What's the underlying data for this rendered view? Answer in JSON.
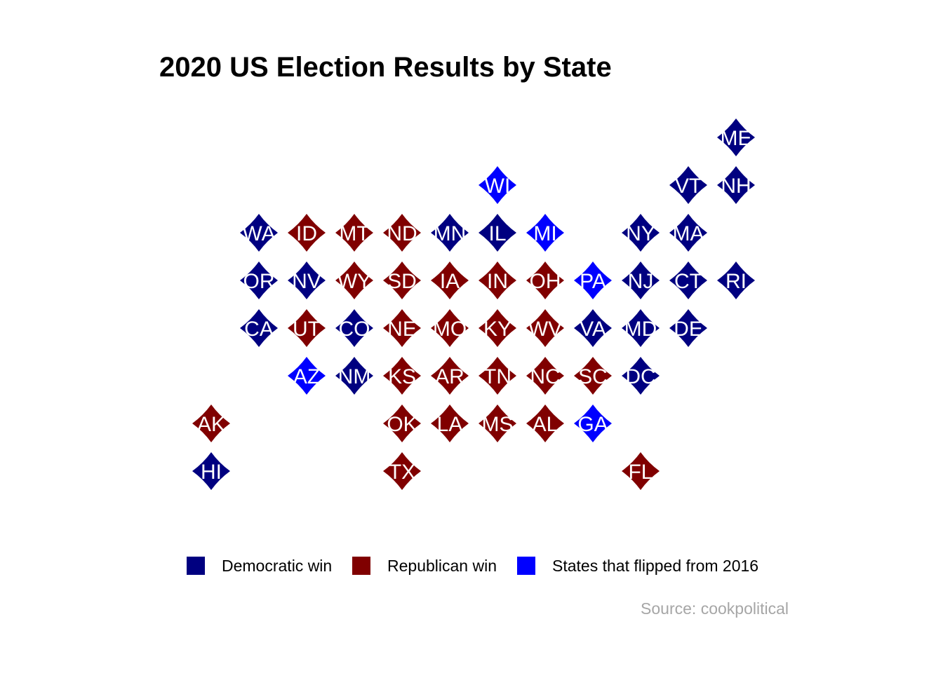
{
  "title": "2020 US Election Results by State",
  "source": "Source: cookpolitical",
  "colors": {
    "democratic": "#000080",
    "republican": "#800000",
    "flipped": "#0000FF",
    "background": "#FFFFFF",
    "label": "#FFFFFF",
    "source_text": "#A6A6A6"
  },
  "legend": {
    "democratic_label": "Democratic win",
    "republican_label": "Republican win",
    "flipped_label": "States that flipped from 2016"
  },
  "states": [
    {
      "abbr": "ME",
      "col": 11,
      "row": 0,
      "result": "democratic"
    },
    {
      "abbr": "WI",
      "col": 6,
      "row": 1,
      "result": "flipped"
    },
    {
      "abbr": "VT",
      "col": 10,
      "row": 1,
      "result": "democratic"
    },
    {
      "abbr": "NH",
      "col": 11,
      "row": 1,
      "result": "democratic"
    },
    {
      "abbr": "WA",
      "col": 1,
      "row": 2,
      "result": "democratic"
    },
    {
      "abbr": "ID",
      "col": 2,
      "row": 2,
      "result": "republican"
    },
    {
      "abbr": "MT",
      "col": 3,
      "row": 2,
      "result": "republican"
    },
    {
      "abbr": "ND",
      "col": 4,
      "row": 2,
      "result": "republican"
    },
    {
      "abbr": "MN",
      "col": 5,
      "row": 2,
      "result": "democratic"
    },
    {
      "abbr": "IL",
      "col": 6,
      "row": 2,
      "result": "democratic"
    },
    {
      "abbr": "MI",
      "col": 7,
      "row": 2,
      "result": "flipped"
    },
    {
      "abbr": "NY",
      "col": 9,
      "row": 2,
      "result": "democratic"
    },
    {
      "abbr": "MA",
      "col": 10,
      "row": 2,
      "result": "democratic"
    },
    {
      "abbr": "OR",
      "col": 1,
      "row": 3,
      "result": "democratic"
    },
    {
      "abbr": "NV",
      "col": 2,
      "row": 3,
      "result": "democratic"
    },
    {
      "abbr": "WY",
      "col": 3,
      "row": 3,
      "result": "republican"
    },
    {
      "abbr": "SD",
      "col": 4,
      "row": 3,
      "result": "republican"
    },
    {
      "abbr": "IA",
      "col": 5,
      "row": 3,
      "result": "republican"
    },
    {
      "abbr": "IN",
      "col": 6,
      "row": 3,
      "result": "republican"
    },
    {
      "abbr": "OH",
      "col": 7,
      "row": 3,
      "result": "republican"
    },
    {
      "abbr": "PA",
      "col": 8,
      "row": 3,
      "result": "flipped"
    },
    {
      "abbr": "NJ",
      "col": 9,
      "row": 3,
      "result": "democratic"
    },
    {
      "abbr": "CT",
      "col": 10,
      "row": 3,
      "result": "democratic"
    },
    {
      "abbr": "RI",
      "col": 11,
      "row": 3,
      "result": "democratic"
    },
    {
      "abbr": "CA",
      "col": 1,
      "row": 4,
      "result": "democratic"
    },
    {
      "abbr": "UT",
      "col": 2,
      "row": 4,
      "result": "republican"
    },
    {
      "abbr": "CO",
      "col": 3,
      "row": 4,
      "result": "democratic"
    },
    {
      "abbr": "NE",
      "col": 4,
      "row": 4,
      "result": "republican"
    },
    {
      "abbr": "MO",
      "col": 5,
      "row": 4,
      "result": "republican"
    },
    {
      "abbr": "KY",
      "col": 6,
      "row": 4,
      "result": "republican"
    },
    {
      "abbr": "WV",
      "col": 7,
      "row": 4,
      "result": "republican"
    },
    {
      "abbr": "VA",
      "col": 8,
      "row": 4,
      "result": "democratic"
    },
    {
      "abbr": "MD",
      "col": 9,
      "row": 4,
      "result": "democratic"
    },
    {
      "abbr": "DE",
      "col": 10,
      "row": 4,
      "result": "democratic"
    },
    {
      "abbr": "AZ",
      "col": 2,
      "row": 5,
      "result": "flipped"
    },
    {
      "abbr": "NM",
      "col": 3,
      "row": 5,
      "result": "democratic"
    },
    {
      "abbr": "KS",
      "col": 4,
      "row": 5,
      "result": "republican"
    },
    {
      "abbr": "AR",
      "col": 5,
      "row": 5,
      "result": "republican"
    },
    {
      "abbr": "TN",
      "col": 6,
      "row": 5,
      "result": "republican"
    },
    {
      "abbr": "NC",
      "col": 7,
      "row": 5,
      "result": "republican"
    },
    {
      "abbr": "SC",
      "col": 8,
      "row": 5,
      "result": "republican"
    },
    {
      "abbr": "DC",
      "col": 9,
      "row": 5,
      "result": "democratic"
    },
    {
      "abbr": "AK",
      "col": 0,
      "row": 6,
      "result": "republican"
    },
    {
      "abbr": "OK",
      "col": 4,
      "row": 6,
      "result": "republican"
    },
    {
      "abbr": "LA",
      "col": 5,
      "row": 6,
      "result": "republican"
    },
    {
      "abbr": "MS",
      "col": 6,
      "row": 6,
      "result": "republican"
    },
    {
      "abbr": "AL",
      "col": 7,
      "row": 6,
      "result": "republican"
    },
    {
      "abbr": "GA",
      "col": 8,
      "row": 6,
      "result": "flipped"
    },
    {
      "abbr": "HI",
      "col": 0,
      "row": 7,
      "result": "democratic"
    },
    {
      "abbr": "TX",
      "col": 4,
      "row": 7,
      "result": "republican"
    },
    {
      "abbr": "FL",
      "col": 9,
      "row": 7,
      "result": "republican"
    }
  ]
}
